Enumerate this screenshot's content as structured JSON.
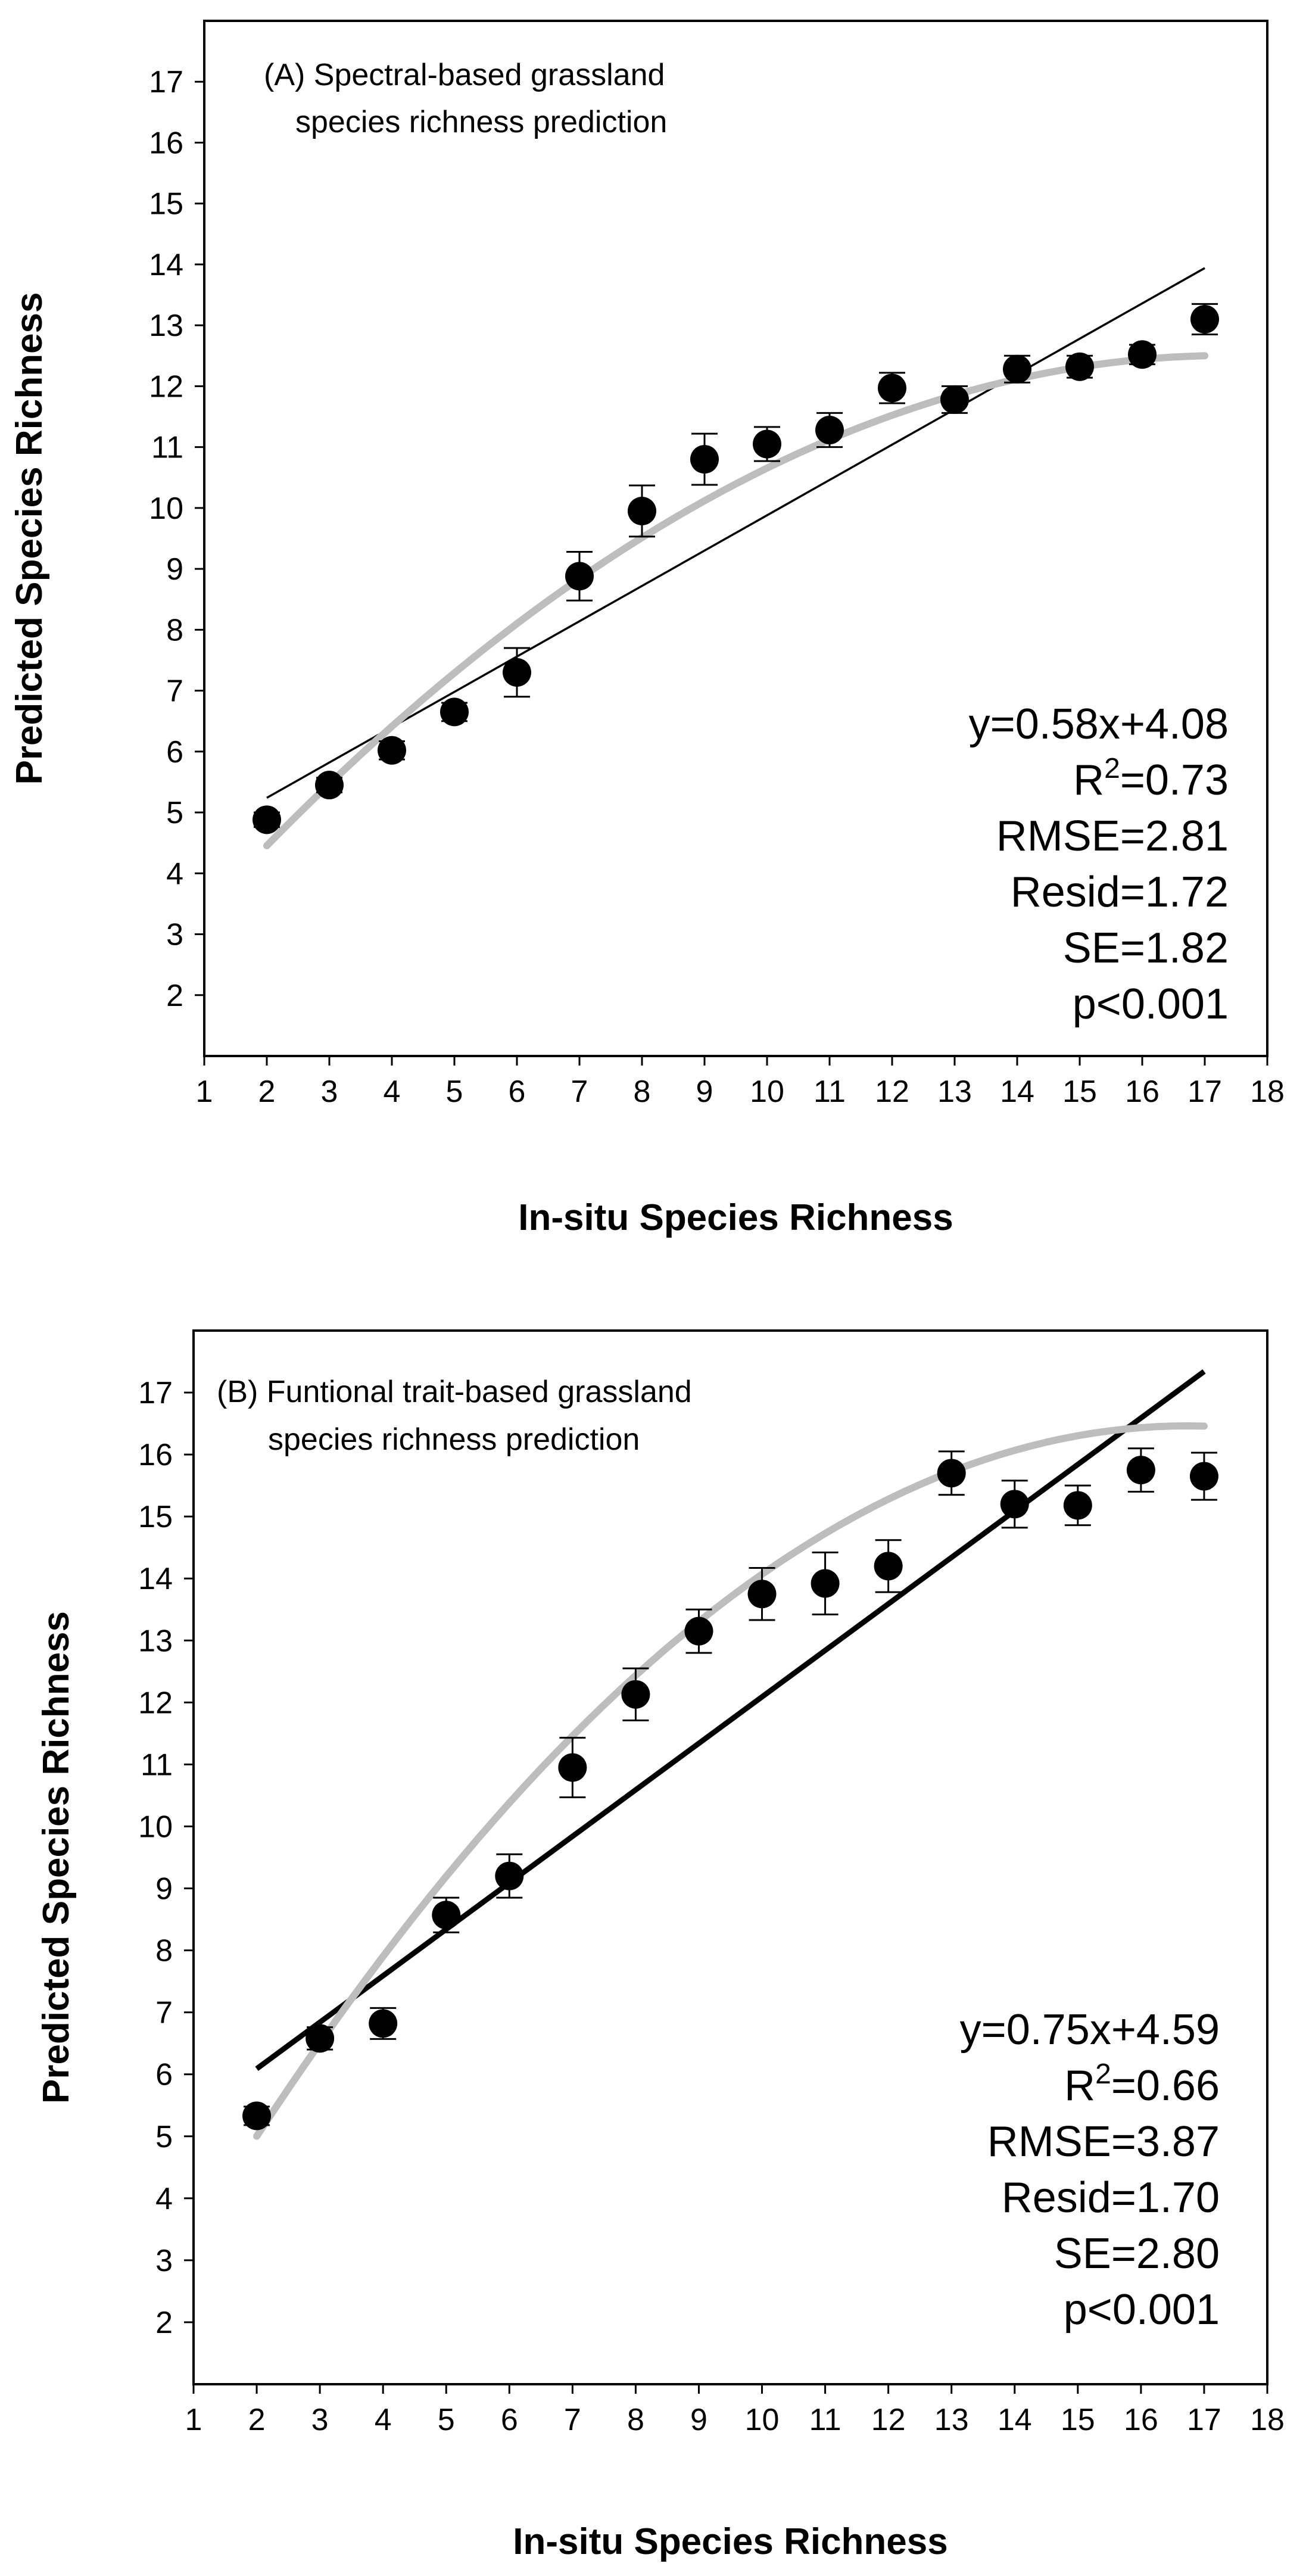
{
  "chart_data": [
    {
      "type": "scatter",
      "panel": "A",
      "title_lines": [
        "(A) Spectral-based grassland",
        "species richness prediction"
      ],
      "xlabel": "In-situ Species Richness",
      "ylabel": "Predicted Species Richness",
      "xlim": [
        1,
        18
      ],
      "ylim": [
        1,
        18
      ],
      "xticks": [
        1,
        2,
        3,
        4,
        5,
        6,
        7,
        8,
        9,
        10,
        11,
        12,
        13,
        14,
        15,
        16,
        17,
        18
      ],
      "yticks": [
        2,
        3,
        4,
        5,
        6,
        7,
        8,
        9,
        10,
        11,
        12,
        13,
        14,
        15,
        16,
        17
      ],
      "grid": false,
      "points": [
        {
          "x": 2,
          "y": 4.88,
          "err": 0.12
        },
        {
          "x": 3,
          "y": 5.45,
          "err": 0.12
        },
        {
          "x": 4,
          "y": 6.02,
          "err": 0.15
        },
        {
          "x": 5,
          "y": 6.65,
          "err": 0.15
        },
        {
          "x": 6,
          "y": 7.3,
          "err": 0.4
        },
        {
          "x": 7,
          "y": 8.88,
          "err": 0.4
        },
        {
          "x": 8,
          "y": 9.95,
          "err": 0.42
        },
        {
          "x": 9,
          "y": 10.8,
          "err": 0.42
        },
        {
          "x": 10,
          "y": 11.05,
          "err": 0.28
        },
        {
          "x": 11,
          "y": 11.28,
          "err": 0.28
        },
        {
          "x": 12,
          "y": 11.97,
          "err": 0.25
        },
        {
          "x": 13,
          "y": 11.78,
          "err": 0.22
        },
        {
          "x": 14,
          "y": 12.28,
          "err": 0.22
        },
        {
          "x": 15,
          "y": 12.32,
          "err": 0.18
        },
        {
          "x": 16,
          "y": 12.52,
          "err": 0.16
        },
        {
          "x": 17,
          "y": 13.1,
          "err": 0.25
        }
      ],
      "linear_fit": {
        "slope": 0.58,
        "intercept": 4.08,
        "x_range": [
          2,
          17
        ]
      },
      "quadratic_fit": {
        "a": -0.0341,
        "b": 1.1843,
        "c": 2.2217,
        "x_range": [
          2,
          17
        ]
      },
      "stats_lines": [
        "y=0.58x+4.08",
        "R",
        "2",
        "=0.73",
        "RMSE=2.81",
        "Resid=1.72",
        "SE=1.82",
        "p<0.001"
      ]
    },
    {
      "type": "scatter",
      "panel": "B",
      "title_lines": [
        "(B) Funtional trait-based grassland",
        "species richness prediction"
      ],
      "xlabel": "In-situ Species Richness",
      "ylabel": "Predicted Species Richness",
      "xlim": [
        1,
        18
      ],
      "ylim": [
        1,
        18
      ],
      "xticks": [
        1,
        2,
        3,
        4,
        5,
        6,
        7,
        8,
        9,
        10,
        11,
        12,
        13,
        14,
        15,
        16,
        17,
        18
      ],
      "yticks": [
        2,
        3,
        4,
        5,
        6,
        7,
        8,
        9,
        10,
        11,
        12,
        13,
        14,
        15,
        16,
        17
      ],
      "grid": false,
      "points": [
        {
          "x": 2,
          "y": 5.33,
          "err": 0.15
        },
        {
          "x": 3,
          "y": 6.58,
          "err": 0.18
        },
        {
          "x": 4,
          "y": 6.82,
          "err": 0.25
        },
        {
          "x": 5,
          "y": 8.57,
          "err": 0.28
        },
        {
          "x": 6,
          "y": 9.2,
          "err": 0.35
        },
        {
          "x": 7,
          "y": 10.95,
          "err": 0.48
        },
        {
          "x": 8,
          "y": 12.13,
          "err": 0.42
        },
        {
          "x": 9,
          "y": 13.15,
          "err": 0.35
        },
        {
          "x": 10,
          "y": 13.75,
          "err": 0.42
        },
        {
          "x": 11,
          "y": 13.92,
          "err": 0.5
        },
        {
          "x": 12,
          "y": 14.2,
          "err": 0.42
        },
        {
          "x": 13,
          "y": 15.7,
          "err": 0.35
        },
        {
          "x": 14,
          "y": 15.2,
          "err": 0.38
        },
        {
          "x": 15,
          "y": 15.18,
          "err": 0.32
        },
        {
          "x": 16,
          "y": 15.75,
          "err": 0.35
        },
        {
          "x": 17,
          "y": 15.65,
          "err": 0.38
        }
      ],
      "linear_fit": {
        "slope": 0.75,
        "intercept": 4.59,
        "x_range": [
          2,
          17
        ]
      },
      "quadratic_fit": {
        "a": -0.0528,
        "b": 1.767,
        "c": 1.6786,
        "x_range": [
          2,
          17
        ]
      },
      "stats_lines": [
        "y=0.75x+4.59",
        "R",
        "2",
        "=0.66",
        "RMSE=3.87",
        "Resid=1.70",
        "SE=2.80",
        "p<0.001"
      ]
    }
  ],
  "colors": {
    "axis": "#000000",
    "points": "#000000",
    "linear_fit": "#000000",
    "quadratic_fit": "#bdbdbd",
    "background": "#ffffff"
  }
}
